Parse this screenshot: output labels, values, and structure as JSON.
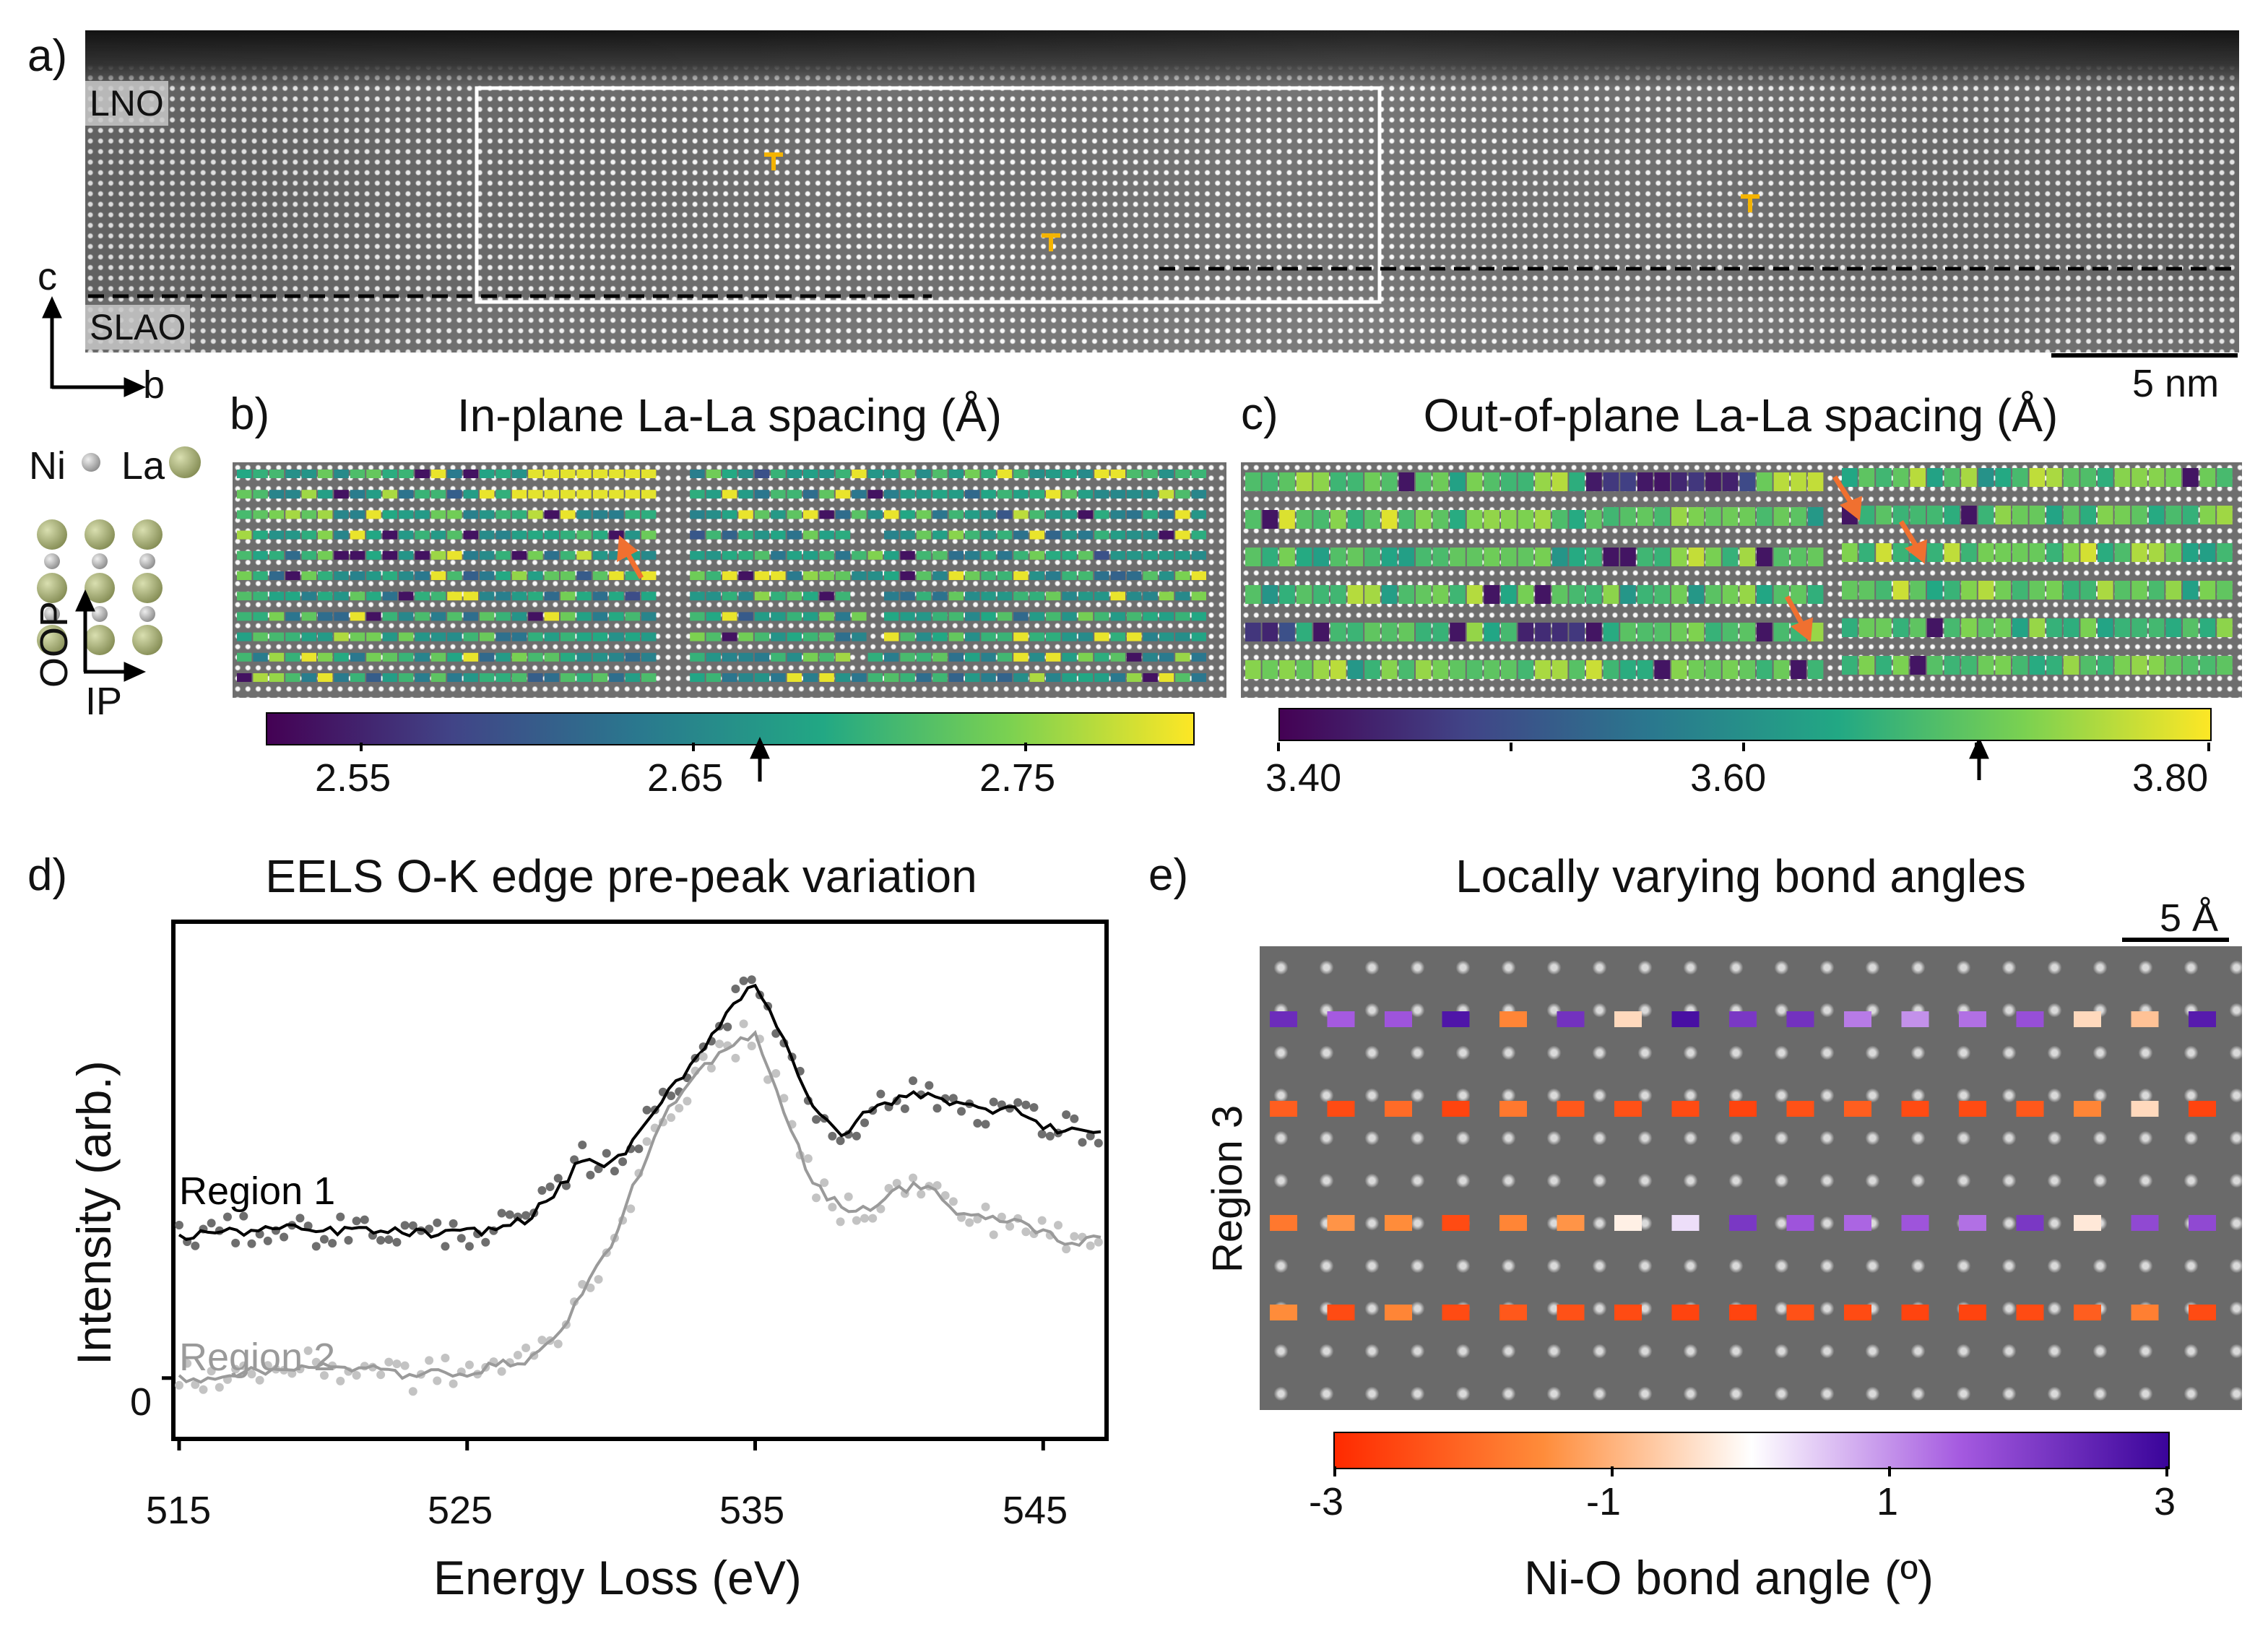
{
  "panel_a": {
    "label": "a)",
    "layer_top": "LNO",
    "layer_bottom": "SLAO",
    "axis_vertical": "c",
    "axis_horizontal": "b",
    "scalebar": "5 nm",
    "dislocation_color": "#f5b400"
  },
  "legend": {
    "ni_label": "Ni",
    "la_label": "La",
    "oop_label": "OOP",
    "ip_label": "IP",
    "ni_color": "#a9a9a9",
    "la_color": "#a4ad73"
  },
  "panel_b": {
    "label": "b)",
    "title": "In-plane La-La spacing (Å)",
    "colorbar_ticks": [
      "2.55",
      "2.65",
      "2.75"
    ],
    "colormap": "viridis"
  },
  "panel_c": {
    "label": "c)",
    "title": "Out-of-plane La-La spacing (Å)",
    "colorbar_ticks": [
      "3.40",
      "3.60",
      "3.80"
    ],
    "colormap": "viridis"
  },
  "panel_d": {
    "label": "d)",
    "title": "EELS O-K edge pre-peak variation",
    "region1_label": "Region 1",
    "region2_label": "Region 2",
    "ylabel": "Intensity (arb.)",
    "xlabel": "Energy Loss (eV)",
    "y_zero_label": "0",
    "x_ticks": [
      "515",
      "525",
      "535",
      "545"
    ]
  },
  "panel_e": {
    "label": "e)",
    "title": "Locally varying bond angles",
    "scalebar": "5 Å",
    "region_label": "Region 3",
    "colorbar_ticks": [
      "-3",
      "-1",
      "1",
      "3"
    ],
    "colorbar_label": "Ni-O bond angle (º)",
    "colormap_colors": [
      "#ff2a00",
      "#ff8c3a",
      "#ffffff",
      "#a55ae0",
      "#3a049a"
    ]
  },
  "chart_data": [
    {
      "type": "line",
      "panel": "d",
      "title": "EELS O-K edge pre-peak variation",
      "xlabel": "Energy Loss (eV)",
      "ylabel": "Intensity (arb.)",
      "xlim": [
        514.8,
        547.2
      ],
      "ylim": [
        -0.1,
        0.75
      ],
      "x": [
        515,
        516,
        517,
        518,
        519,
        520,
        521,
        522,
        523,
        524,
        525,
        526,
        527,
        528,
        529,
        530,
        531,
        532,
        533,
        534,
        535,
        536,
        537,
        538,
        539,
        540,
        541,
        542,
        543,
        544,
        545,
        546,
        547
      ],
      "series": [
        {
          "name": "Region 1",
          "color": "#000000",
          "values": [
            0.23,
            0.24,
            0.24,
            0.245,
            0.245,
            0.24,
            0.245,
            0.24,
            0.24,
            0.235,
            0.24,
            0.245,
            0.26,
            0.3,
            0.36,
            0.35,
            0.4,
            0.47,
            0.53,
            0.6,
            0.65,
            0.56,
            0.44,
            0.4,
            0.44,
            0.46,
            0.47,
            0.45,
            0.44,
            0.45,
            0.41,
            0.41,
            0.4
          ]
        },
        {
          "name": "Region 2",
          "color": "#9a9a9a",
          "values": [
            0.0,
            0.0,
            0.01,
            0.01,
            0.02,
            0.02,
            0.01,
            0.02,
            0.0,
            0.01,
            0.01,
            0.02,
            0.03,
            0.06,
            0.14,
            0.22,
            0.34,
            0.44,
            0.5,
            0.54,
            0.57,
            0.44,
            0.32,
            0.28,
            0.28,
            0.31,
            0.32,
            0.27,
            0.26,
            0.26,
            0.24,
            0.22,
            0.23
          ]
        }
      ]
    },
    {
      "type": "heatmap",
      "panel": "e",
      "ylabel": "Region 3",
      "value_label": "Ni-O bond angle (º)",
      "zlim": [
        -3,
        3
      ],
      "rows": [
        [
          2.3,
          1.5,
          1.6,
          2.7,
          -1.6,
          2.2,
          -0.5,
          2.8,
          2.1,
          2.2,
          1.2,
          1.0,
          1.3,
          1.7,
          -0.5,
          -0.8,
          2.6
        ],
        [
          -2.2,
          -2.5,
          -2.0,
          -2.6,
          -1.8,
          -2.3,
          -2.4,
          -2.5,
          -2.6,
          -2.4,
          -2.2,
          -2.5,
          -2.5,
          -2.3,
          -1.6,
          -0.5,
          -2.6
        ],
        [
          -1.8,
          -1.4,
          -1.5,
          -2.5,
          -1.6,
          -1.4,
          -0.2,
          0.3,
          2.1,
          1.6,
          1.4,
          1.6,
          1.3,
          2.1,
          -0.3,
          1.8,
          1.8
        ],
        [
          -1.5,
          -2.5,
          -1.6,
          -2.5,
          -2.3,
          -2.4,
          -2.5,
          -2.6,
          -2.6,
          -2.4,
          -2.5,
          -2.6,
          -2.6,
          -2.5,
          -2.2,
          -1.7,
          -2.5
        ]
      ]
    }
  ]
}
